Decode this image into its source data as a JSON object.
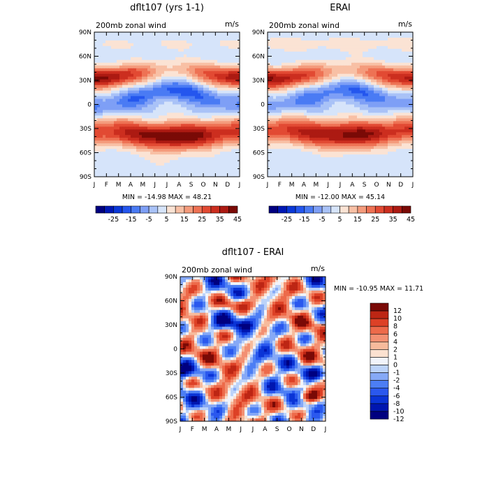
{
  "chart_data": [
    {
      "type": "heatmap",
      "title": "dflt107 (yrs 1-1)",
      "subtitle_left": "200mb zonal wind",
      "subtitle_right": "m/s",
      "months": [
        "J",
        "F",
        "M",
        "A",
        "M",
        "J",
        "J",
        "A",
        "S",
        "O",
        "N",
        "D",
        "J"
      ],
      "lat_labels": [
        "90N",
        "60N",
        "30N",
        "0",
        "30S",
        "60S",
        "90S"
      ],
      "min_max_text": "MIN = -14.98  MAX =  48.21",
      "levels": [
        -30,
        -25,
        -20,
        -15,
        -10,
        -5,
        0,
        5,
        10,
        15,
        20,
        25,
        30,
        35,
        40,
        45
      ],
      "colorbar_labels": [
        "-25",
        "-15",
        "-5",
        "5",
        "15",
        "25",
        "35",
        "45"
      ],
      "field": {
        "north_jet": {
          "lat": 33,
          "winter": 42,
          "summer": 12
        },
        "south_jet": {
          "lat": -40,
          "winter": 45,
          "summer": 30
        },
        "equator_easterly": -12,
        "polar_north": 5,
        "polar_south": 4
      }
    },
    {
      "type": "heatmap",
      "title": "ERAI",
      "subtitle_left": "200mb zonal wind",
      "subtitle_right": "m/s",
      "months": [
        "J",
        "F",
        "M",
        "A",
        "M",
        "J",
        "J",
        "A",
        "S",
        "O",
        "N",
        "D",
        "J"
      ],
      "lat_labels": [
        "90N",
        "60N",
        "30N",
        "0",
        "30S",
        "60S",
        "90S"
      ],
      "min_max_text": "MIN = -12.00  MAX =  45.14",
      "levels": [
        -30,
        -25,
        -20,
        -15,
        -10,
        -5,
        0,
        5,
        10,
        15,
        20,
        25,
        30,
        35,
        40,
        45
      ],
      "colorbar_labels": [
        "-25",
        "-15",
        "-5",
        "5",
        "15",
        "25",
        "35",
        "45"
      ],
      "field": {
        "north_jet": {
          "lat": 32,
          "winter": 40,
          "summer": 14
        },
        "south_jet": {
          "lat": -38,
          "winter": 42,
          "summer": 30
        },
        "equator_easterly": -10,
        "polar_north": 6,
        "polar_south": 3
      }
    },
    {
      "type": "heatmap",
      "title": "dflt107 - ERAI",
      "subtitle_left": "200mb zonal wind",
      "subtitle_right": "m/s",
      "months": [
        "J",
        "F",
        "M",
        "A",
        "M",
        "J",
        "J",
        "A",
        "S",
        "O",
        "N",
        "D",
        "J"
      ],
      "lat_labels": [
        "90N",
        "60N",
        "30N",
        "0",
        "30S",
        "60S",
        "90S"
      ],
      "min_max_text": "MIN = -10.95  MAX =  11.71",
      "levels": [
        -12,
        -10,
        -8,
        -6,
        -4,
        -2,
        -1,
        0,
        1,
        2,
        4,
        6,
        8,
        10,
        12
      ],
      "colorbar_labels": [
        "12",
        "10",
        "8",
        "6",
        "4",
        "2",
        "1",
        "0",
        "-1",
        "-2",
        "-4",
        "-6",
        "-8",
        "-10",
        "-12"
      ]
    }
  ]
}
